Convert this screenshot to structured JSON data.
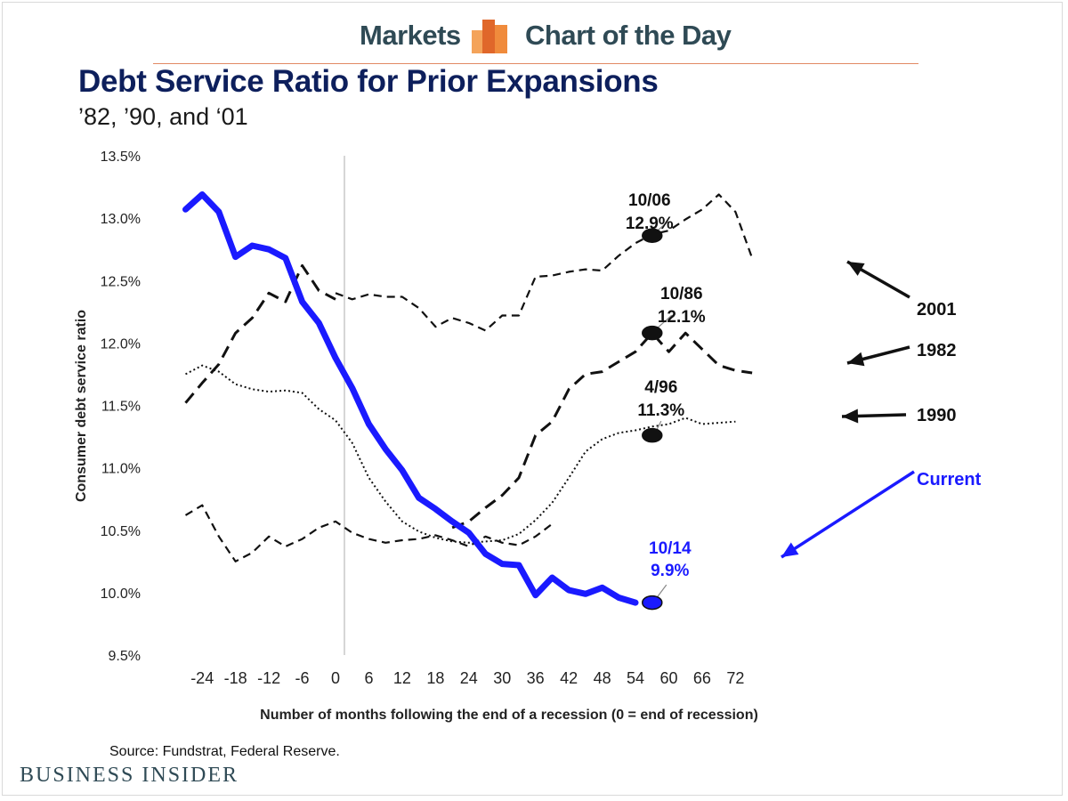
{
  "header": {
    "markets_label": "Markets",
    "chart_of_day_label": "Chart of the Day",
    "logo_icon": "bar-logo-icon",
    "rule_color": "#e28a64"
  },
  "footer": {
    "source": "Source: Fundstrat, Federal Reserve.",
    "publisher": "Business Insider"
  },
  "chart_data": {
    "type": "line",
    "title": "Debt Service Ratio for Prior Expansions",
    "subtitle": "’82, ’90, and ‘01",
    "xlabel": "Number of months following the end of a recession (0 = end of recession)",
    "ylabel": "Consumer debt service ratio",
    "xlim": [
      -28,
      80
    ],
    "ylim": [
      9.5,
      13.5
    ],
    "xticks": [
      "-24",
      "-18",
      "-12",
      "-6",
      "0",
      "6",
      "12",
      "18",
      "24",
      "30",
      "36",
      "42",
      "48",
      "54",
      "60",
      "66",
      "72"
    ],
    "xtick_values": [
      -24,
      -18,
      -12,
      -6,
      0,
      6,
      12,
      18,
      24,
      30,
      36,
      42,
      48,
      54,
      60,
      66,
      72
    ],
    "yticks": [
      "9.5%",
      "10.0%",
      "10.5%",
      "11.0%",
      "11.5%",
      "12.0%",
      "12.5%",
      "13.0%",
      "13.5%"
    ],
    "ytick_values": [
      9.5,
      10.0,
      10.5,
      11.0,
      11.5,
      12.0,
      12.5,
      13.0,
      13.5
    ],
    "grid": false,
    "series": [
      {
        "name": "2001",
        "style": "dashed",
        "color": "#111111",
        "points": [
          [
            -27,
            10.62
          ],
          [
            -24,
            10.7
          ],
          [
            -21,
            10.45
          ],
          [
            -18,
            10.25
          ],
          [
            -15,
            10.32
          ],
          [
            -12,
            10.45
          ],
          [
            -9,
            10.37
          ],
          [
            -6,
            10.43
          ],
          [
            -3,
            10.52
          ],
          [
            0,
            10.57
          ],
          [
            3,
            10.48
          ],
          [
            6,
            10.43
          ],
          [
            9,
            10.4
          ],
          [
            12,
            10.42
          ],
          [
            15,
            10.43
          ],
          [
            18,
            10.46
          ],
          [
            21,
            10.42
          ],
          [
            24,
            10.37
          ],
          [
            27,
            10.45
          ],
          [
            30,
            10.4
          ],
          [
            33,
            10.38
          ],
          [
            36,
            10.45
          ],
          [
            39,
            10.55
          ]
        ]
      },
      {
        "name": "1990",
        "style": "dotted",
        "color": "#111111",
        "points": [
          [
            -27,
            11.75
          ],
          [
            -24,
            11.82
          ],
          [
            -21,
            11.77
          ],
          [
            -18,
            11.67
          ],
          [
            -15,
            11.63
          ],
          [
            -12,
            11.61
          ],
          [
            -9,
            11.62
          ],
          [
            -6,
            11.6
          ],
          [
            -3,
            11.47
          ],
          [
            0,
            11.38
          ],
          [
            3,
            11.2
          ],
          [
            6,
            10.92
          ],
          [
            9,
            10.73
          ],
          [
            12,
            10.57
          ],
          [
            15,
            10.49
          ],
          [
            18,
            10.44
          ],
          [
            21,
            10.41
          ],
          [
            24,
            10.4
          ],
          [
            27,
            10.41
          ],
          [
            30,
            10.42
          ],
          [
            33,
            10.47
          ],
          [
            36,
            10.58
          ],
          [
            39,
            10.72
          ],
          [
            42,
            10.92
          ],
          [
            45,
            11.13
          ],
          [
            48,
            11.23
          ],
          [
            51,
            11.28
          ],
          [
            54,
            11.3
          ],
          [
            57,
            11.33
          ],
          [
            60,
            11.35
          ],
          [
            63,
            11.4
          ],
          [
            66,
            11.35
          ],
          [
            69,
            11.36
          ],
          [
            72,
            11.37
          ]
        ]
      },
      {
        "name": "1982",
        "style": "long-dashed",
        "color": "#111111",
        "points": [
          [
            -27,
            11.52
          ],
          [
            -24,
            11.68
          ],
          [
            -21,
            11.83
          ],
          [
            -18,
            12.08
          ],
          [
            -15,
            12.2
          ],
          [
            -12,
            12.4
          ],
          [
            -9,
            12.33
          ],
          [
            -6,
            12.62
          ],
          [
            -3,
            12.42
          ],
          [
            0,
            12.35
          ]
        ]
      },
      {
        "name": "1982b",
        "style": "long-dashed",
        "color": "#111111",
        "points": [
          [
            21,
            10.52
          ],
          [
            24,
            10.57
          ],
          [
            27,
            10.68
          ],
          [
            30,
            10.78
          ],
          [
            33,
            10.92
          ],
          [
            36,
            11.26
          ],
          [
            39,
            11.37
          ],
          [
            42,
            11.63
          ],
          [
            45,
            11.75
          ],
          [
            48,
            11.77
          ],
          [
            51,
            11.85
          ],
          [
            54,
            11.93
          ],
          [
            57,
            12.08
          ],
          [
            60,
            11.93
          ],
          [
            63,
            12.08
          ],
          [
            66,
            11.95
          ],
          [
            69,
            11.82
          ],
          [
            72,
            11.78
          ],
          [
            75,
            11.76
          ]
        ]
      },
      {
        "name": "2001b",
        "style": "dashed",
        "color": "#111111",
        "points": [
          [
            0,
            12.4
          ],
          [
            3,
            12.35
          ],
          [
            6,
            12.39
          ],
          [
            9,
            12.37
          ],
          [
            12,
            12.37
          ],
          [
            15,
            12.28
          ],
          [
            18,
            12.13
          ],
          [
            21,
            12.2
          ],
          [
            24,
            12.16
          ],
          [
            27,
            12.1
          ],
          [
            30,
            12.22
          ],
          [
            33,
            12.22
          ],
          [
            36,
            12.53
          ],
          [
            39,
            12.54
          ],
          [
            42,
            12.57
          ],
          [
            45,
            12.59
          ],
          [
            48,
            12.58
          ],
          [
            51,
            12.7
          ],
          [
            54,
            12.8
          ],
          [
            57,
            12.87
          ],
          [
            60,
            12.9
          ],
          [
            63,
            12.99
          ],
          [
            66,
            13.07
          ],
          [
            69,
            13.19
          ],
          [
            72,
            13.05
          ],
          [
            75,
            12.68
          ]
        ]
      },
      {
        "name": "Current",
        "style": "solid",
        "color": "#1a1aff",
        "points": [
          [
            -27,
            13.07
          ],
          [
            -24,
            13.19
          ],
          [
            -21,
            13.05
          ],
          [
            -18,
            12.69
          ],
          [
            -15,
            12.78
          ],
          [
            -12,
            12.75
          ],
          [
            -9,
            12.68
          ],
          [
            -6,
            12.33
          ],
          [
            -3,
            12.16
          ],
          [
            0,
            11.88
          ],
          [
            3,
            11.64
          ],
          [
            6,
            11.35
          ],
          [
            9,
            11.15
          ],
          [
            12,
            10.98
          ],
          [
            15,
            10.76
          ],
          [
            18,
            10.67
          ],
          [
            21,
            10.57
          ],
          [
            24,
            10.48
          ],
          [
            27,
            10.31
          ],
          [
            30,
            10.23
          ],
          [
            33,
            10.22
          ],
          [
            36,
            9.98
          ],
          [
            39,
            10.12
          ],
          [
            42,
            10.02
          ],
          [
            45,
            9.99
          ],
          [
            48,
            10.04
          ],
          [
            51,
            9.96
          ],
          [
            54,
            9.92
          ]
        ]
      }
    ],
    "legend_labels": [
      {
        "name": "2001",
        "label": "2001"
      },
      {
        "name": "1982",
        "label": "1982"
      },
      {
        "name": "1990",
        "label": "1990"
      },
      {
        "name": "Current",
        "label": "Current",
        "color": "#1a1aff"
      }
    ],
    "annotations": [
      {
        "date": "10/06",
        "value_label": "12.9%",
        "x": 57,
        "y": 12.86,
        "color": "#111111"
      },
      {
        "date": "10/86",
        "value_label": "12.1%",
        "x": 57,
        "y": 12.08,
        "color": "#111111"
      },
      {
        "date": "4/96",
        "value_label": "11.3%",
        "x": 57,
        "y": 11.26,
        "color": "#111111"
      },
      {
        "date": "10/14",
        "value_label": "9.9%",
        "x": 57,
        "y": 9.92,
        "color": "#1a1aff"
      }
    ]
  }
}
